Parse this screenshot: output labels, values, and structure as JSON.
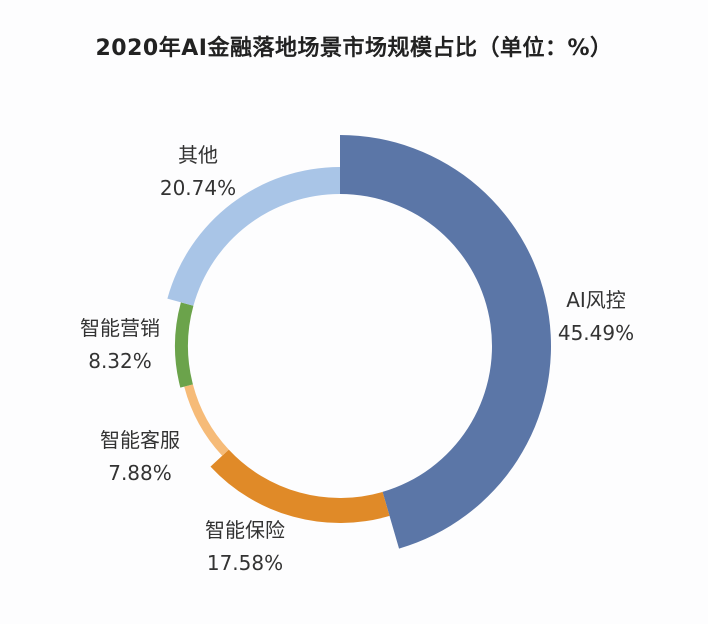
{
  "chart_data": {
    "type": "pie",
    "subtype": "variable-radius donut",
    "title": "2020年AI金融落地场景市场规模占比（单位：%）",
    "start_angle": "top, clockwise",
    "slices": [
      {
        "name": "AI风控",
        "value": 45.49,
        "label": "45.49%",
        "color": "#5b76a7"
      },
      {
        "name": "智能保险",
        "value": 17.58,
        "label": "17.58%",
        "color": "#e08a28"
      },
      {
        "name": "智能客服",
        "value": 7.88,
        "label": "7.88%",
        "color": "#f6bb78"
      },
      {
        "name": "智能营销",
        "value": 8.32,
        "label": "8.32%",
        "color": "#6ba34b"
      },
      {
        "name": "其他",
        "value": 20.74,
        "label": "20.74%",
        "color": "#a9c5e7"
      }
    ]
  }
}
